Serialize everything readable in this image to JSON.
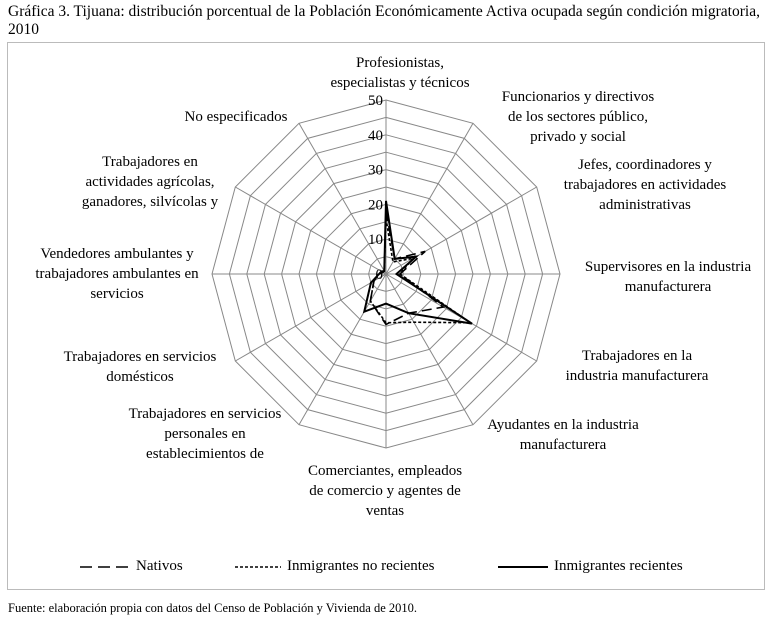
{
  "title": "Gráfica 3. Tijuana: distribución porcentual de la Población Económicamente Activa ocupada según condición migratoria, 2010",
  "footer": "Fuente: elaboración propia con datos del Censo de Población y Vivienda de 2010.",
  "chart_data": {
    "type": "radar",
    "title": "Gráfica 3. Tijuana: distribución porcentual de la Población Económicamente Activa ocupada según condición migratoria, 2010",
    "categories": [
      "Profesionistas,\nespecialistas y técnicos",
      "Funcionarios y directivos\nde los sectores público,\nprivado y social",
      "Jefes, coordinadores y\ntrabajadores en actividades\nadministrativas",
      "Supervisores en la industria\nmanufacturera",
      "Trabajadores en la\nindustria manufacturera",
      "Ayudantes en la industria\nmanufacturera",
      "Comerciantes, empleados\nde comercio y agentes de\nventas",
      "Trabajadores en servicios\npersonales en\nestablecimientos de",
      "Trabajadores en servicios\ndomésticos",
      "Vendedores ambulantes y\ntrabajadores ambulantes en\nservicios",
      "Trabajadores en\nactividades agrícolas,\nganadores, silvícolas y",
      "No especificados"
    ],
    "ticks": [
      "0",
      "10",
      "20",
      "30",
      "40",
      "50"
    ],
    "rlim": [
      0,
      50
    ],
    "grid": true,
    "legend_position": "bottom",
    "series": [
      {
        "name": "Nativos",
        "style": "long-dash",
        "values": [
          18,
          5,
          13,
          4,
          19,
          13,
          14.5,
          9,
          4,
          2,
          1,
          1
        ]
      },
      {
        "name": "Inmigrantes no recientes",
        "style": "dotted",
        "values": [
          16,
          4,
          9,
          4,
          28,
          16,
          14,
          9,
          4,
          2,
          1,
          1
        ]
      },
      {
        "name": "Inmigrantes recientes",
        "style": "solid",
        "values": [
          21,
          5,
          10,
          3,
          28.5,
          13,
          8.5,
          12.5,
          5,
          2,
          1.5,
          1
        ]
      }
    ]
  }
}
